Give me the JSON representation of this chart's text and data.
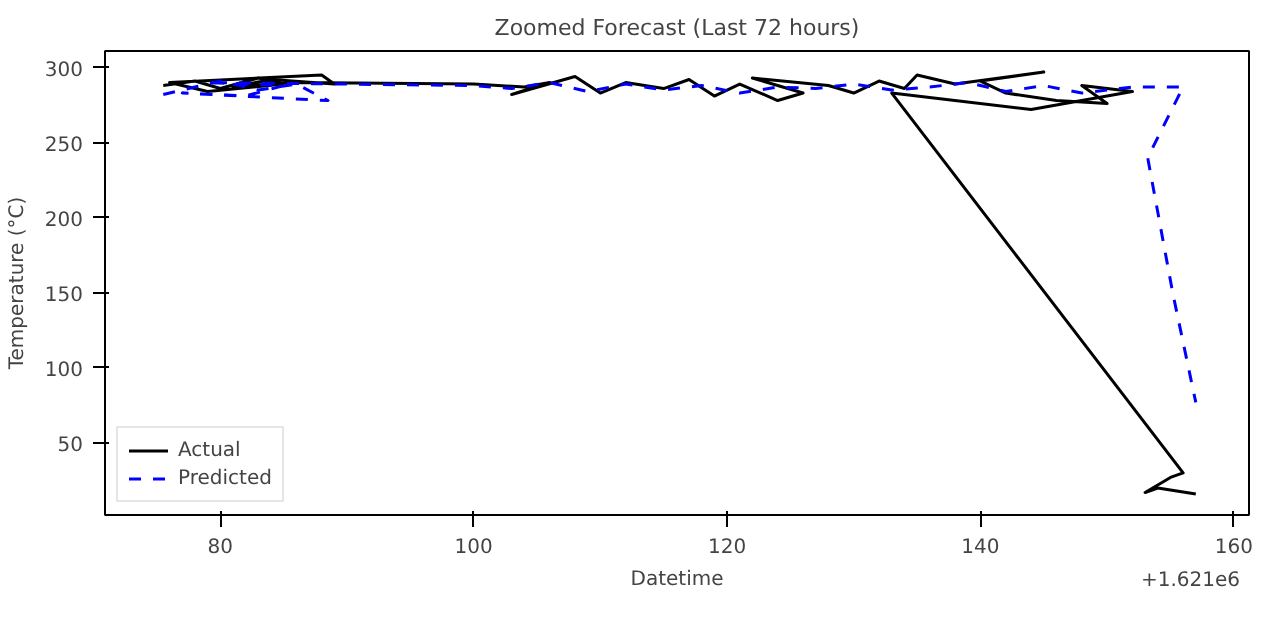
{
  "chart_data": {
    "type": "line",
    "title": "Zoomed Forecast (Last 72 hours)",
    "xlabel": "Datetime",
    "ylabel": "Temperature (°C)",
    "annotations": [
      "+1.621e6"
    ],
    "x": [
      75.5,
      78,
      80,
      83,
      85,
      79,
      76,
      88,
      89,
      84,
      81,
      86,
      100,
      104,
      106,
      103,
      108,
      110,
      112,
      115,
      117,
      119,
      121,
      124,
      126,
      122,
      128,
      130,
      132,
      134,
      135,
      138,
      145,
      140,
      142,
      146,
      150,
      148,
      152,
      144,
      133,
      156,
      155,
      153,
      154,
      157
    ],
    "series": [
      {
        "name": "Actual",
        "color": "#000000",
        "line_style": "solid",
        "values": [
          288,
          291,
          286,
          293,
          289,
          284,
          290,
          295,
          289,
          292,
          287,
          290,
          289,
          287,
          290,
          282,
          294,
          283,
          290,
          286,
          292,
          281,
          289,
          278,
          283,
          293,
          288,
          283,
          291,
          286,
          295,
          289,
          297,
          291,
          283,
          278,
          276,
          288,
          284,
          272,
          283,
          30,
          27,
          17,
          20,
          16
        ]
      },
      {
        "name": "Predicted",
        "color": "#0000ff",
        "line_style": "dashed",
        "x": [
          75.5,
          78,
          80,
          83,
          86,
          88.5,
          77,
          82,
          85,
          79,
          100,
          103,
          106,
          109,
          112,
          115,
          118,
          121,
          124,
          127,
          130,
          133,
          136,
          139,
          142,
          145,
          148,
          151,
          152,
          156,
          153.2,
          155.2,
          157
        ],
        "values": [
          282,
          287,
          291,
          285,
          289,
          278,
          283,
          281,
          288,
          290,
          288,
          286,
          290,
          284,
          289,
          285,
          288,
          283,
          287,
          286,
          289,
          285,
          287,
          290,
          284,
          288,
          283,
          286,
          287,
          287,
          240,
          149,
          77
        ]
      }
    ],
    "xlim": [
      70.9,
      161.2
    ],
    "ylim": [
      2,
      311
    ],
    "xticks": [
      80,
      100,
      120,
      140,
      160
    ],
    "yticks": [
      50,
      100,
      150,
      200,
      250,
      300
    ],
    "legend": "bottom left",
    "grid": false
  }
}
